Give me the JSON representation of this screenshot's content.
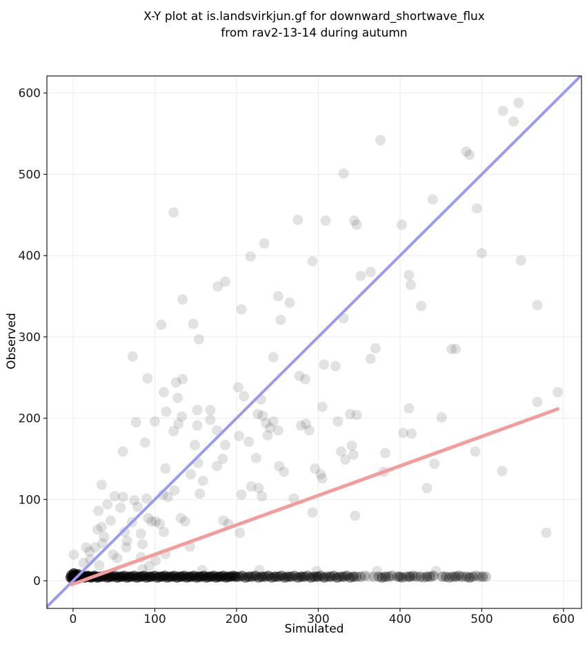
{
  "title": {
    "line1": "X-Y plot at is.landsvirkjun.gf for downward_shortwave_flux",
    "line2": "from rav2-13-14 during autumn"
  },
  "chart_data": {
    "type": "scatter",
    "xlabel": "Simulated",
    "ylabel": "Observed",
    "xlim": [
      -32,
      622
    ],
    "ylim": [
      -34,
      621
    ],
    "xticks": [
      0,
      100,
      200,
      300,
      400,
      500,
      600
    ],
    "yticks": [
      0,
      100,
      200,
      300,
      400,
      500,
      600
    ],
    "grid": true,
    "grid_color": "#ebebeb",
    "spine_color": "#1a1a1a",
    "point_color": "#000000",
    "point_alpha": 0.115,
    "point_radius_px": 7.5,
    "lines": [
      {
        "name": "identity-line",
        "slope": 1,
        "intercept": 0,
        "x_start": -32,
        "x_end": 622,
        "color": "#9a9af2",
        "width": 4
      },
      {
        "name": "regression-line",
        "slope": 0.363,
        "intercept": -4,
        "x_start": -2,
        "x_end": 593,
        "color": "#f49c9c",
        "width": 5
      }
    ],
    "points": [
      [
        526,
        578
      ],
      [
        545,
        588
      ],
      [
        539,
        565
      ],
      [
        376,
        542
      ],
      [
        481,
        528
      ],
      [
        485,
        524
      ],
      [
        331,
        501
      ],
      [
        123,
        453
      ],
      [
        440,
        469
      ],
      [
        494,
        458
      ],
      [
        275,
        444
      ],
      [
        309,
        443
      ],
      [
        344,
        443
      ],
      [
        347,
        438
      ],
      [
        402,
        438
      ],
      [
        234,
        415
      ],
      [
        500,
        403
      ],
      [
        548,
        394
      ],
      [
        293,
        393
      ],
      [
        217,
        399
      ],
      [
        352,
        375
      ],
      [
        364,
        380
      ],
      [
        411,
        376
      ],
      [
        413,
        364
      ],
      [
        177,
        362
      ],
      [
        186,
        368
      ],
      [
        134,
        346
      ],
      [
        251,
        350
      ],
      [
        265,
        342
      ],
      [
        426,
        338
      ],
      [
        568,
        339
      ],
      [
        206,
        334
      ],
      [
        254,
        321
      ],
      [
        331,
        323
      ],
      [
        108,
        315
      ],
      [
        147,
        316
      ],
      [
        154,
        297
      ],
      [
        370,
        286
      ],
      [
        364,
        273
      ],
      [
        73,
        276
      ],
      [
        245,
        275
      ],
      [
        307,
        266
      ],
      [
        321,
        264
      ],
      [
        463,
        285
      ],
      [
        468,
        285
      ],
      [
        277,
        252
      ],
      [
        284,
        248
      ],
      [
        91,
        249
      ],
      [
        126,
        244
      ],
      [
        134,
        248
      ],
      [
        111,
        232
      ],
      [
        128,
        225
      ],
      [
        202,
        238
      ],
      [
        209,
        227
      ],
      [
        230,
        223
      ],
      [
        568,
        220
      ],
      [
        593,
        232
      ],
      [
        114,
        208
      ],
      [
        152,
        210
      ],
      [
        168,
        210
      ],
      [
        305,
        214
      ],
      [
        411,
        212
      ],
      [
        226,
        205
      ],
      [
        232,
        203
      ],
      [
        339,
        205
      ],
      [
        347,
        204
      ],
      [
        168,
        198
      ],
      [
        133,
        202
      ],
      [
        77,
        195
      ],
      [
        100,
        196
      ],
      [
        129,
        193
      ],
      [
        152,
        191
      ],
      [
        123,
        184
      ],
      [
        176,
        185
      ],
      [
        236,
        194
      ],
      [
        245,
        196
      ],
      [
        241,
        188
      ],
      [
        251,
        185
      ],
      [
        238,
        179
      ],
      [
        203,
        178
      ],
      [
        279,
        191
      ],
      [
        324,
        196
      ],
      [
        285,
        193
      ],
      [
        289,
        185
      ],
      [
        451,
        201
      ],
      [
        404,
        182
      ],
      [
        414,
        181
      ],
      [
        215,
        171
      ],
      [
        88,
        170
      ],
      [
        61,
        159
      ],
      [
        149,
        167
      ],
      [
        186,
        167
      ],
      [
        224,
        151
      ],
      [
        113,
        138
      ],
      [
        144,
        131
      ],
      [
        153,
        145
      ],
      [
        176,
        141
      ],
      [
        183,
        150
      ],
      [
        159,
        123
      ],
      [
        252,
        141
      ],
      [
        258,
        134
      ],
      [
        341,
        166
      ],
      [
        328,
        159
      ],
      [
        333,
        149
      ],
      [
        343,
        155
      ],
      [
        382,
        157
      ],
      [
        492,
        159
      ],
      [
        442,
        144
      ],
      [
        296,
        138
      ],
      [
        303,
        131
      ],
      [
        380,
        134
      ],
      [
        525,
        135
      ],
      [
        305,
        126
      ],
      [
        35,
        118
      ],
      [
        218,
        116
      ],
      [
        227,
        114
      ],
      [
        231,
        104
      ],
      [
        206,
        106
      ],
      [
        270,
        101
      ],
      [
        51,
        104
      ],
      [
        61,
        103
      ],
      [
        42,
        94
      ],
      [
        75,
        99
      ],
      [
        58,
        90
      ],
      [
        79,
        91
      ],
      [
        90,
        101
      ],
      [
        110,
        106
      ],
      [
        116,
        103
      ],
      [
        124,
        111
      ],
      [
        155,
        107
      ],
      [
        433,
        114
      ],
      [
        293,
        84
      ],
      [
        345,
        80
      ],
      [
        31,
        86
      ],
      [
        92,
        77
      ],
      [
        96,
        73
      ],
      [
        101,
        73
      ],
      [
        106,
        70
      ],
      [
        111,
        60
      ],
      [
        132,
        77
      ],
      [
        137,
        73
      ],
      [
        83,
        58
      ],
      [
        85,
        45
      ],
      [
        66,
        49
      ],
      [
        36,
        46
      ],
      [
        38,
        54
      ],
      [
        30,
        63
      ],
      [
        35,
        66
      ],
      [
        16,
        41
      ],
      [
        63,
        60
      ],
      [
        72,
        72
      ],
      [
        184,
        74
      ],
      [
        190,
        70
      ],
      [
        204,
        59
      ],
      [
        46,
        74
      ],
      [
        143,
        42
      ],
      [
        579,
        59
      ],
      [
        27,
        41
      ],
      [
        65,
        41
      ],
      [
        20,
        36
      ],
      [
        49,
        32
      ],
      [
        54,
        28
      ],
      [
        13,
        22
      ],
      [
        21,
        26
      ],
      [
        32,
        19
      ],
      [
        83,
        29
      ],
      [
        93,
        18
      ],
      [
        101,
        25
      ],
      [
        113,
        33
      ],
      [
        1,
        32
      ],
      [
        85,
        14
      ],
      [
        158,
        13
      ],
      [
        228,
        13
      ],
      [
        298,
        12
      ],
      [
        372,
        12
      ],
      [
        444,
        12
      ]
    ],
    "overplotted_points": [
      [
        -3,
        4,
        8
      ],
      [
        -2,
        7,
        6
      ],
      [
        -1,
        3,
        8
      ],
      [
        0,
        5,
        40
      ],
      [
        1,
        9,
        10
      ],
      [
        2,
        4,
        14
      ],
      [
        3,
        7,
        16
      ],
      [
        4,
        5,
        12
      ],
      [
        5,
        5,
        18
      ],
      [
        6,
        8,
        8
      ],
      [
        7,
        4,
        12
      ],
      [
        8,
        6,
        10
      ],
      [
        9,
        5,
        8
      ],
      [
        10,
        5,
        14
      ],
      [
        12,
        6,
        10
      ],
      [
        14,
        4,
        10
      ],
      [
        16,
        5,
        8
      ],
      [
        18,
        6,
        8
      ],
      [
        20,
        5,
        10
      ],
      [
        22,
        4,
        8
      ],
      [
        24,
        5,
        8
      ],
      [
        26,
        6,
        7
      ],
      [
        28,
        5,
        7
      ],
      [
        30,
        4,
        8
      ],
      [
        33,
        5,
        7
      ],
      [
        36,
        5,
        8
      ],
      [
        39,
        6,
        7
      ],
      [
        42,
        4,
        7
      ],
      [
        45,
        5,
        8
      ],
      [
        48,
        5,
        7
      ],
      [
        51,
        6,
        6
      ],
      [
        54,
        4,
        7
      ],
      [
        57,
        5,
        7
      ],
      [
        60,
        5,
        8
      ],
      [
        63,
        6,
        6
      ],
      [
        66,
        4,
        7
      ],
      [
        69,
        5,
        8
      ],
      [
        72,
        5,
        6
      ],
      [
        75,
        6,
        6
      ],
      [
        78,
        4,
        7
      ],
      [
        81,
        5,
        6
      ],
      [
        84,
        5,
        7
      ],
      [
        87,
        6,
        6
      ],
      [
        90,
        4,
        6
      ],
      [
        93,
        5,
        7
      ],
      [
        96,
        5,
        8
      ],
      [
        100,
        6,
        6
      ],
      [
        103,
        4,
        6
      ],
      [
        106,
        5,
        7
      ],
      [
        109,
        5,
        6
      ],
      [
        112,
        6,
        7
      ],
      [
        115,
        4,
        6
      ],
      [
        118,
        5,
        7
      ],
      [
        121,
        5,
        6
      ],
      [
        124,
        6,
        6
      ],
      [
        127,
        4,
        7
      ],
      [
        130,
        5,
        6
      ],
      [
        133,
        5,
        7
      ],
      [
        136,
        6,
        6
      ],
      [
        139,
        4,
        6
      ],
      [
        142,
        5,
        7
      ],
      [
        145,
        5,
        6
      ],
      [
        148,
        6,
        6
      ],
      [
        151,
        4,
        6
      ],
      [
        154,
        5,
        7
      ],
      [
        157,
        5,
        6
      ],
      [
        160,
        6,
        6
      ],
      [
        163,
        4,
        6
      ],
      [
        166,
        5,
        7
      ],
      [
        169,
        5,
        6
      ],
      [
        172,
        6,
        6
      ],
      [
        175,
        4,
        6
      ],
      [
        178,
        5,
        7
      ],
      [
        181,
        5,
        6
      ],
      [
        184,
        6,
        6
      ],
      [
        187,
        4,
        6
      ],
      [
        190,
        5,
        7
      ],
      [
        193,
        5,
        6
      ],
      [
        196,
        6,
        6
      ],
      [
        199,
        5,
        8
      ],
      [
        203,
        5,
        5
      ],
      [
        207,
        6,
        5
      ],
      [
        211,
        4,
        5
      ],
      [
        215,
        5,
        6
      ],
      [
        219,
        5,
        5
      ],
      [
        223,
        6,
        5
      ],
      [
        227,
        4,
        5
      ],
      [
        231,
        5,
        6
      ],
      [
        235,
        5,
        5
      ],
      [
        239,
        6,
        5
      ],
      [
        243,
        4,
        5
      ],
      [
        247,
        5,
        6
      ],
      [
        251,
        5,
        5
      ],
      [
        255,
        6,
        5
      ],
      [
        259,
        4,
        5
      ],
      [
        263,
        5,
        6
      ],
      [
        267,
        5,
        5
      ],
      [
        271,
        6,
        4
      ],
      [
        275,
        4,
        5
      ],
      [
        279,
        5,
        6
      ],
      [
        283,
        5,
        5
      ],
      [
        287,
        6,
        4
      ],
      [
        291,
        4,
        5
      ],
      [
        295,
        5,
        5
      ],
      [
        299,
        5,
        6
      ],
      [
        303,
        6,
        4
      ],
      [
        307,
        4,
        5
      ],
      [
        311,
        5,
        4
      ],
      [
        315,
        5,
        5
      ],
      [
        319,
        6,
        4
      ],
      [
        323,
        4,
        5
      ],
      [
        327,
        5,
        4
      ],
      [
        331,
        5,
        5
      ],
      [
        335,
        6,
        4
      ],
      [
        339,
        4,
        4
      ],
      [
        343,
        5,
        5
      ],
      [
        347,
        5,
        3
      ],
      [
        352,
        5,
        3
      ],
      [
        357,
        6,
        2
      ],
      [
        362,
        5,
        1
      ],
      [
        368,
        5,
        2
      ],
      [
        374,
        5,
        3
      ],
      [
        378,
        4,
        4
      ],
      [
        382,
        5,
        4
      ],
      [
        386,
        5,
        3
      ],
      [
        390,
        6,
        3
      ],
      [
        397,
        5,
        3
      ],
      [
        400,
        5,
        4
      ],
      [
        403,
        4,
        3
      ],
      [
        408,
        5,
        3
      ],
      [
        412,
        5,
        5
      ],
      [
        416,
        6,
        3
      ],
      [
        420,
        5,
        3
      ],
      [
        425,
        5,
        3
      ],
      [
        429,
        4,
        2
      ],
      [
        433,
        5,
        4
      ],
      [
        437,
        5,
        3
      ],
      [
        441,
        6,
        3
      ],
      [
        452,
        5,
        3
      ],
      [
        456,
        5,
        3
      ],
      [
        460,
        4,
        3
      ],
      [
        464,
        5,
        3
      ],
      [
        468,
        5,
        4
      ],
      [
        472,
        6,
        3
      ],
      [
        476,
        5,
        3
      ],
      [
        481,
        5,
        3
      ],
      [
        485,
        4,
        4
      ],
      [
        489,
        5,
        3
      ],
      [
        493,
        6,
        2
      ],
      [
        497,
        5,
        2
      ],
      [
        501,
        5,
        3
      ],
      [
        505,
        5,
        2
      ]
    ]
  }
}
